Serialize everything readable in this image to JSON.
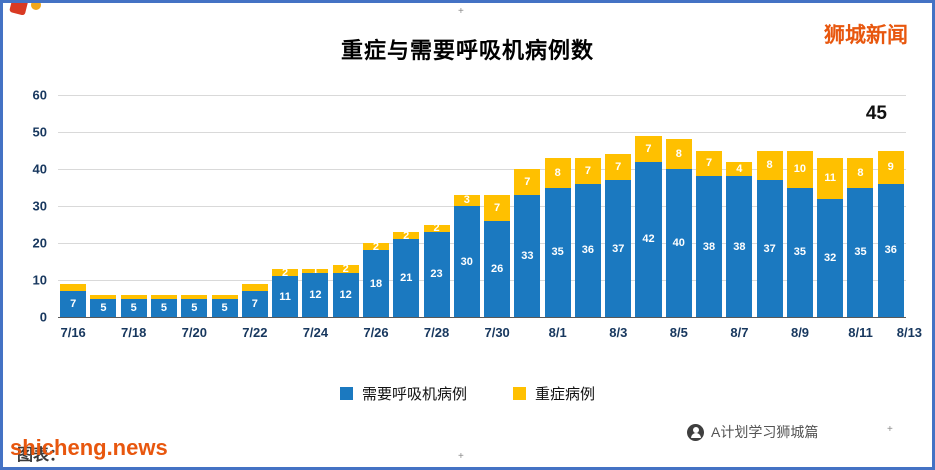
{
  "watermarks": {
    "top_right": "狮城新闻"
  },
  "footer": {
    "caption": "图表：",
    "watermark": "shicheng.news",
    "attribution": "A计划学习狮城篇"
  },
  "colors": {
    "bar_blue": "#1B79C0",
    "bar_yellow": "#FFC000",
    "frame_border": "#4472C4",
    "brand_orange": "#E8570E",
    "axis_text": "#17375E",
    "gridline": "#D9D9D9"
  },
  "chart_data": {
    "type": "bar",
    "stacked": true,
    "title": "重症与需要呼吸机病例数",
    "categories": [
      "7/16",
      "7/17",
      "7/18",
      "7/19",
      "7/20",
      "7/21",
      "7/22",
      "7/23",
      "7/24",
      "7/25",
      "7/26",
      "7/27",
      "7/28",
      "7/29",
      "7/30",
      "7/31",
      "8/1",
      "8/2",
      "8/3",
      "8/4",
      "8/5",
      "8/6",
      "8/7",
      "8/8",
      "8/9",
      "8/10",
      "8/11",
      "8/12"
    ],
    "series": [
      {
        "name": "需要呼吸机病例",
        "color": "#1B79C0",
        "values": [
          7,
          5,
          5,
          5,
          5,
          5,
          7,
          11,
          12,
          12,
          18,
          21,
          23,
          30,
          26,
          33,
          35,
          36,
          37,
          42,
          40,
          38,
          38,
          37,
          35,
          32,
          35,
          36
        ],
        "labels_from_index": 0
      },
      {
        "name": "重症病例",
        "color": "#FFC000",
        "values": [
          2,
          1,
          1,
          1,
          1,
          1,
          2,
          2,
          1,
          2,
          2,
          2,
          2,
          3,
          7,
          7,
          8,
          7,
          7,
          7,
          8,
          7,
          4,
          8,
          10,
          11,
          8,
          9
        ],
        "labels_from_index": 7
      }
    ],
    "x_tick_labels": [
      "7/16",
      "7/18",
      "7/20",
      "7/22",
      "7/24",
      "7/26",
      "7/28",
      "7/30",
      "8/1",
      "8/3",
      "8/5",
      "8/7",
      "8/9",
      "8/11",
      "8/13"
    ],
    "x_tick_day_step": 2,
    "ylim": [
      0,
      60
    ],
    "y_ticks": [
      0,
      10,
      20,
      30,
      40,
      50,
      60
    ],
    "grid": "horizontal",
    "legend_position": "bottom",
    "annotation": {
      "text": "45"
    }
  }
}
